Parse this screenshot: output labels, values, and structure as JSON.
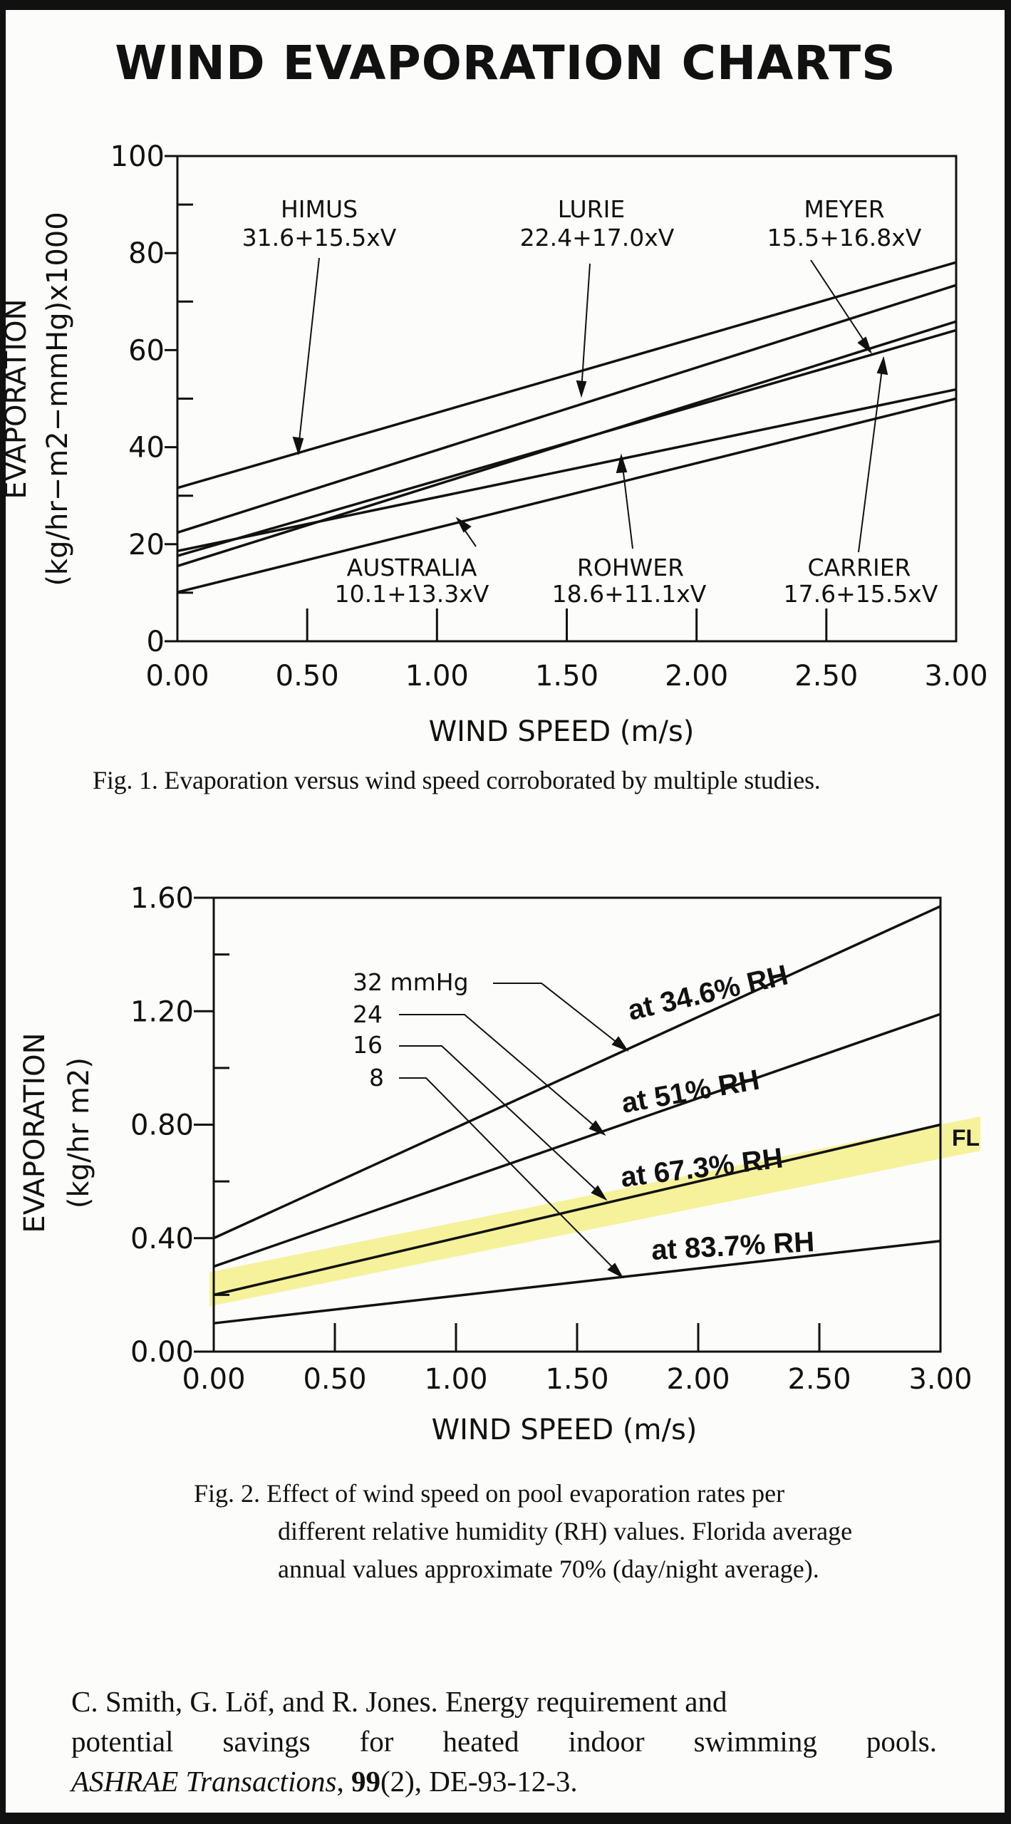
{
  "title": "WIND EVAPORATION CHARTS",
  "chart_data": [
    {
      "type": "line",
      "xlabel": "WIND SPEED (m/s)",
      "ylabel_lines": [
        "EVAPORATION",
        "(kg/hr−m2−mmHg)x1000"
      ],
      "x_ticks": [
        "0.00",
        "0.50",
        "1.00",
        "1.50",
        "2.00",
        "2.50",
        "3.00"
      ],
      "y_ticks": [
        "0",
        "20",
        "40",
        "60",
        "80",
        "100"
      ],
      "xlim": [
        0,
        3
      ],
      "ylim": [
        0,
        100
      ],
      "grid": false,
      "series": [
        {
          "name": "HIMUS",
          "equation": "31.6+15.5xV",
          "intercept": 31.6,
          "slope": 15.5
        },
        {
          "name": "LURIE",
          "equation": "22.4+17.0xV",
          "intercept": 22.4,
          "slope": 17.0
        },
        {
          "name": "MEYER",
          "equation": "15.5+16.8xV",
          "intercept": 15.5,
          "slope": 16.8
        },
        {
          "name": "AUSTRALIA",
          "equation": "10.1+13.3xV",
          "intercept": 10.1,
          "slope": 13.3
        },
        {
          "name": "ROHWER",
          "equation": "18.6+11.1xV",
          "intercept": 18.6,
          "slope": 11.1
        },
        {
          "name": "CARRIER",
          "equation": "17.6+15.5xV",
          "intercept": 17.6,
          "slope": 15.5
        }
      ],
      "caption": "Fig. 1. Evaporation versus wind speed corroborated by multiple studies."
    },
    {
      "type": "line",
      "xlabel": "WIND SPEED (m/s)",
      "ylabel_lines": [
        "EVAPORATION",
        "(kg/hr m2)"
      ],
      "x_ticks": [
        "0.00",
        "0.50",
        "1.00",
        "1.50",
        "2.00",
        "2.50",
        "3.00"
      ],
      "y_ticks": [
        "0.00",
        "0.40",
        "0.80",
        "1.20",
        "1.60"
      ],
      "xlim": [
        0,
        3
      ],
      "ylim": [
        0,
        1.6
      ],
      "grid": false,
      "series": [
        {
          "name": "at 34.6% RH",
          "pressure": "32 mmHg",
          "x": [
            0,
            3
          ],
          "y": [
            0.4,
            1.57
          ]
        },
        {
          "name": "at 51% RH",
          "pressure": "24",
          "x": [
            0,
            3
          ],
          "y": [
            0.3,
            1.19
          ]
        },
        {
          "name": "at 67.3% RH",
          "pressure": "16",
          "x": [
            0,
            3
          ],
          "y": [
            0.2,
            0.8
          ]
        },
        {
          "name": "at 83.7% RH",
          "pressure": "8",
          "x": [
            0,
            3
          ],
          "y": [
            0.1,
            0.39
          ]
        }
      ],
      "highlight": {
        "label": "FL",
        "color": "#f3f08a",
        "x": [
          0,
          3
        ],
        "y_center": [
          0.22,
          0.74
        ]
      },
      "caption_lines": [
        "Fig. 2. Effect of wind speed on pool evaporation rates per",
        "different relative humidity (RH) values. Florida average",
        "annual values approximate 70% (day/night average)."
      ]
    }
  ],
  "reference": {
    "line1": "C. Smith, G. Löf, and R. Jones. Energy requirement and",
    "line2": "potential savings for heated indoor swimming pools.",
    "journal": "ASHRAE Transactions",
    "volume": "99",
    "issue_rest": "(2), DE-93-12-3."
  }
}
